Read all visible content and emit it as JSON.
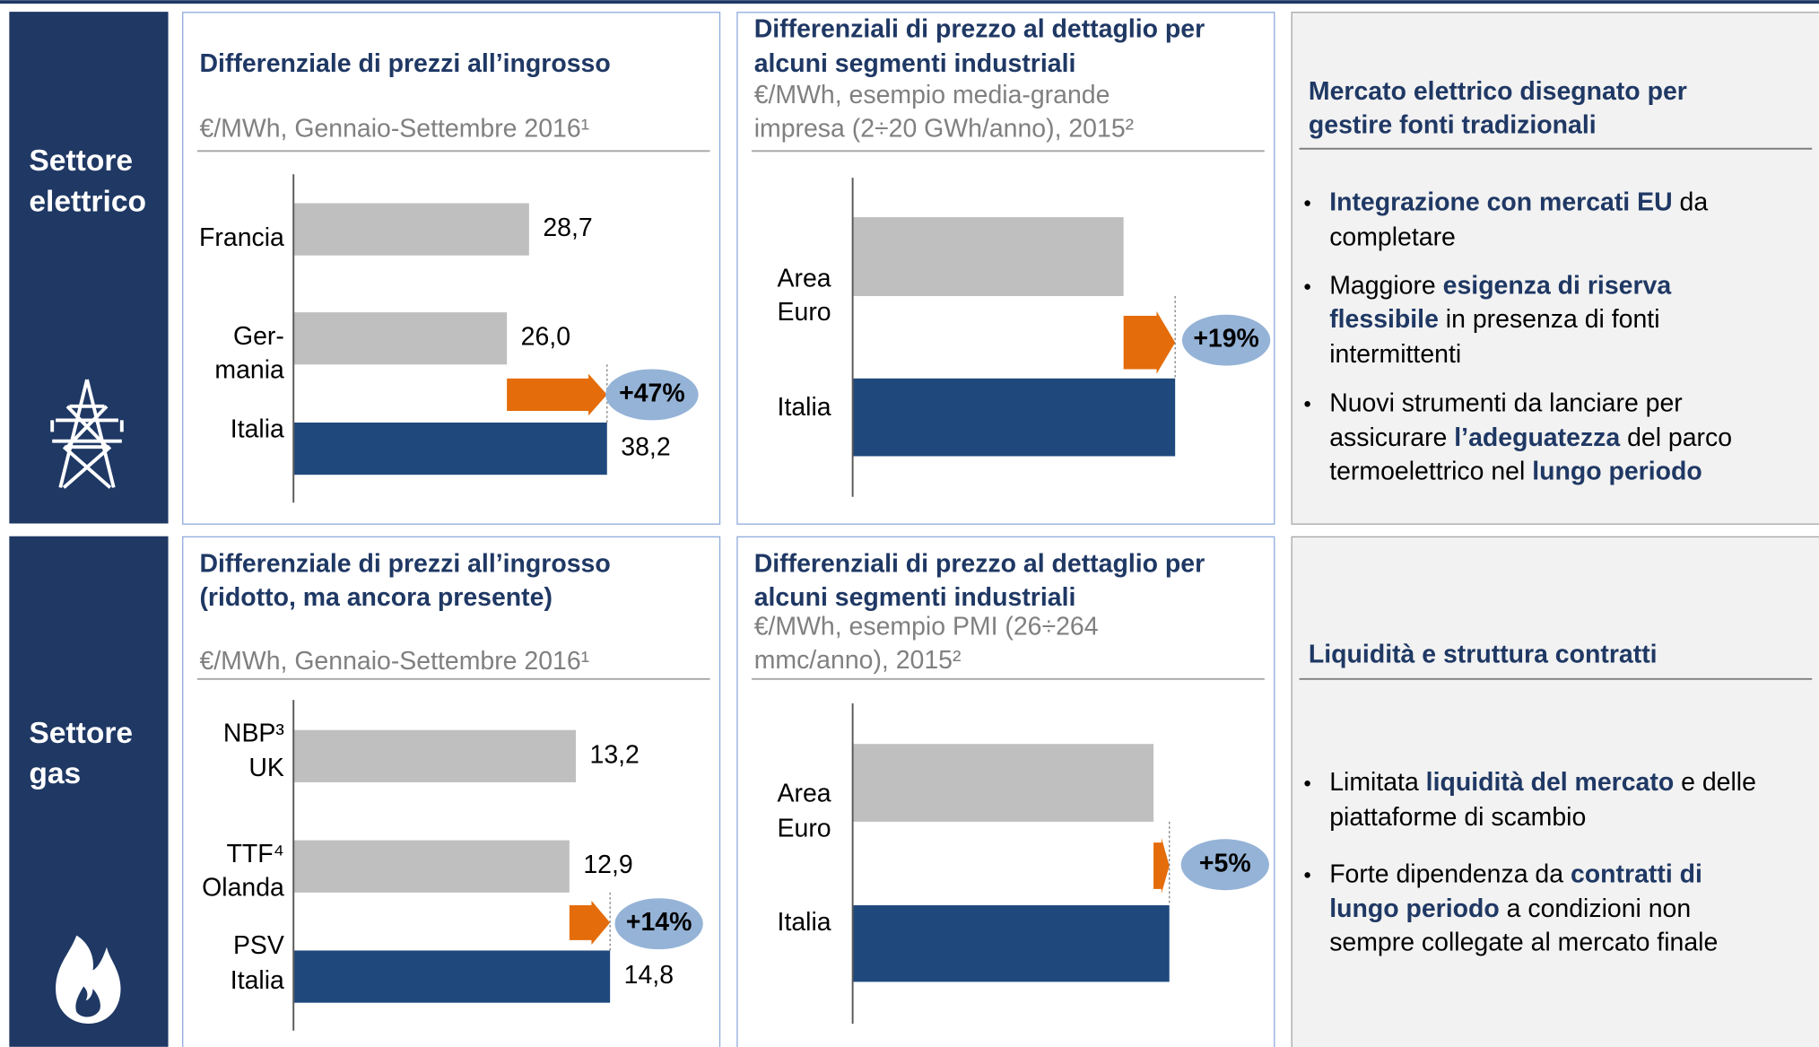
{
  "sections": [
    {
      "label": [
        "Settore",
        "elettrico"
      ]
    },
    {
      "label": [
        "Settore",
        "gas"
      ]
    }
  ],
  "chart_data": [
    {
      "type": "bar",
      "orientation": "horizontal",
      "title": [
        "Differenziale di prezzi all’ingrosso"
      ],
      "subtitle": [
        "€/MWh, Gennaio-Settembre 2016¹"
      ],
      "categories": [
        [
          "Francia"
        ],
        [
          "Ger-",
          "mania"
        ],
        [
          "Italia"
        ]
      ],
      "values": [
        28.7,
        26.0,
        38.2
      ],
      "value_labels": [
        "28,7",
        "26,0",
        "38,2"
      ],
      "colors": [
        "#bfbfbf",
        "#bfbfbf",
        "#1f497d"
      ],
      "xlim": [
        0,
        40
      ],
      "annotation": "+47%",
      "arrow_color": "#e46c0a"
    },
    {
      "type": "bar",
      "orientation": "horizontal",
      "title": [
        "Differenziali di prezzo al dettaglio per",
        "alcuni segmenti industriali"
      ],
      "subtitle": [
        "€/MWh, esempio media-grande",
        "impresa (2÷20 GWh/anno), 2015²"
      ],
      "categories": [
        [
          "Area",
          "Euro"
        ],
        [
          "Italia"
        ]
      ],
      "values": [
        84,
        100
      ],
      "colors": [
        "#bfbfbf",
        "#1f497d"
      ],
      "xlim": [
        0,
        100
      ],
      "annotation": "+19%",
      "arrow_color": "#e46c0a"
    },
    {
      "type": "bar",
      "orientation": "horizontal",
      "title": [
        "Differenziale di prezzi all’ingrosso",
        "(ridotto, ma ancora presente)"
      ],
      "subtitle": [
        "€/MWh, Gennaio-Settembre 2016¹"
      ],
      "categories": [
        [
          "NBP³",
          "UK"
        ],
        [
          "TTF⁴",
          "Olanda"
        ],
        [
          "PSV",
          "Italia"
        ]
      ],
      "values": [
        13.2,
        12.9,
        14.8
      ],
      "value_labels": [
        "13,2",
        "12,9",
        "14,8"
      ],
      "colors": [
        "#bfbfbf",
        "#bfbfbf",
        "#1f497d"
      ],
      "xlim": [
        0,
        16
      ],
      "annotation": "+14%",
      "arrow_color": "#e46c0a"
    },
    {
      "type": "bar",
      "orientation": "horizontal",
      "title": [
        "Differenziali di prezzo al dettaglio per",
        "alcuni segmenti industriali"
      ],
      "subtitle": [
        "€/MWh, esempio PMI (26÷264",
        "mmc/anno), 2015²"
      ],
      "categories": [
        [
          "Area",
          "Euro"
        ],
        [
          "Italia"
        ]
      ],
      "values": [
        95,
        100
      ],
      "colors": [
        "#bfbfbf",
        "#1f497d"
      ],
      "xlim": [
        0,
        100
      ],
      "annotation": "+5%",
      "arrow_color": "#e46c0a"
    }
  ],
  "panels": [
    {
      "heading": [
        "Mercato elettrico disegnato per",
        "gestire fonti tradizionali"
      ],
      "bullets": [
        [
          [
            {
              "text": "Integrazione con mercati EU",
              "bold": true
            },
            {
              "text": " da"
            }
          ],
          [
            {
              "text": "completare"
            }
          ]
        ],
        [
          [
            {
              "text": "Maggiore "
            },
            {
              "text": "esigenza di riserva",
              "bold": true
            }
          ],
          [
            {
              "text": "flessibile",
              "bold": true
            },
            {
              "text": " in presenza di fonti"
            }
          ],
          [
            {
              "text": "intermittenti"
            }
          ]
        ],
        [
          [
            {
              "text": "Nuovi strumenti da lanciare per"
            }
          ],
          [
            {
              "text": "assicurare "
            },
            {
              "text": "l’adeguatezza",
              "bold": true
            },
            {
              "text": " del parco"
            }
          ],
          [
            {
              "text": "termoelettrico nel "
            },
            {
              "text": "lungo periodo",
              "bold": true
            }
          ]
        ]
      ]
    },
    {
      "heading": [
        "Liquidità e struttura contratti"
      ],
      "bullets": [
        [
          [
            {
              "text": "Limitata "
            },
            {
              "text": "liquidità del mercato",
              "bold": true
            },
            {
              "text": " e delle"
            }
          ],
          [
            {
              "text": "piattaforme di scambio"
            }
          ]
        ],
        [
          [
            {
              "text": "Forte dipendenza da "
            },
            {
              "text": "contratti di",
              "bold": true
            }
          ],
          [
            {
              "text": "lungo periodo",
              "bold": true
            },
            {
              "text": " a condizioni non"
            }
          ],
          [
            {
              "text": "sempre collegate al mercato finale"
            }
          ]
        ]
      ]
    }
  ]
}
